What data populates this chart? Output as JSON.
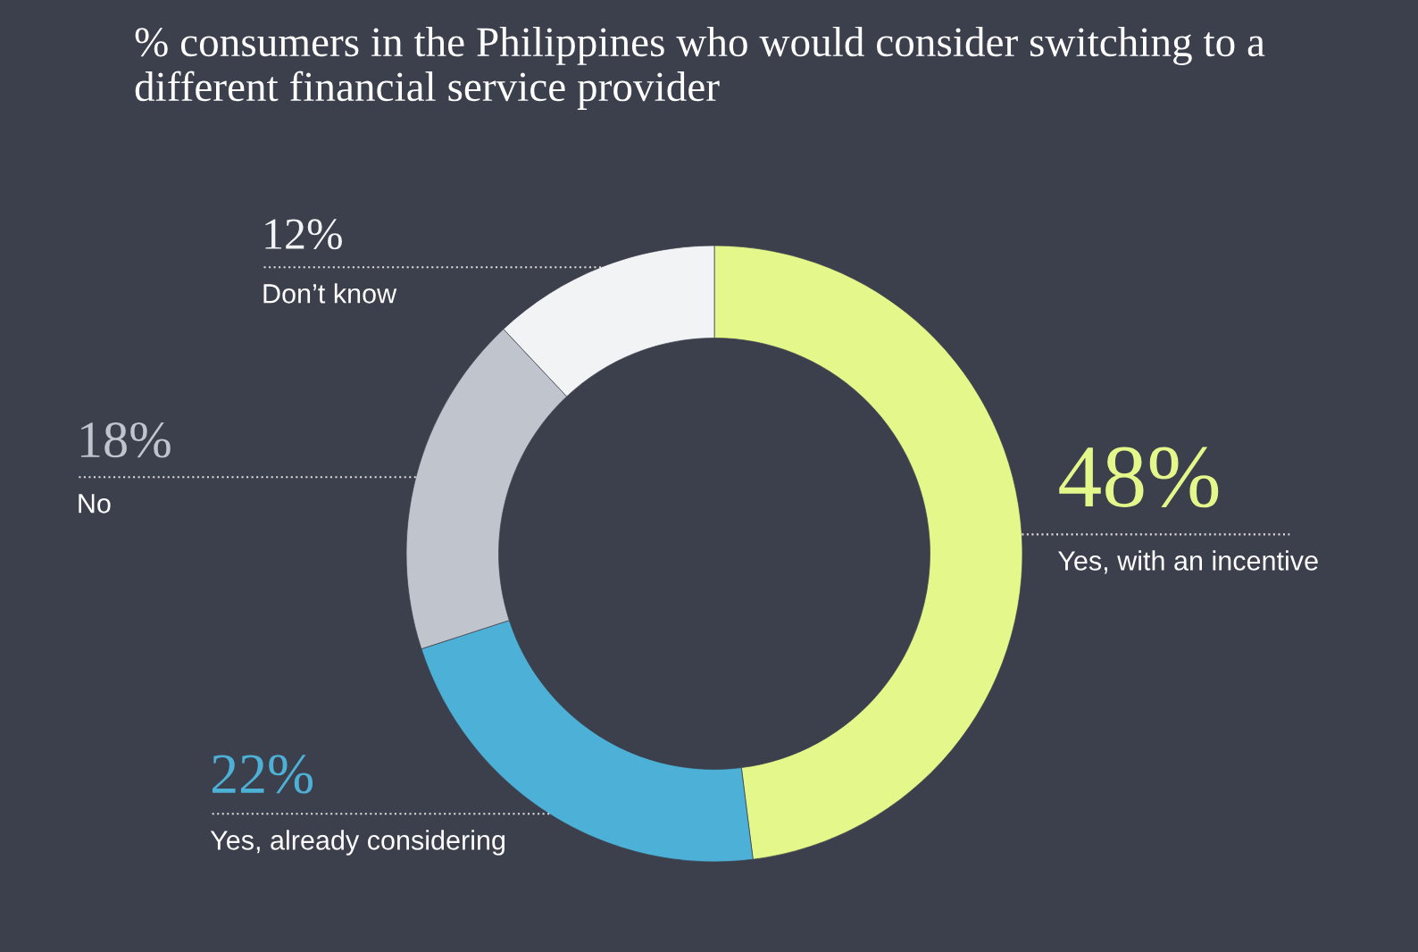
{
  "chart_data": {
    "type": "donut",
    "title": "% consumers in the Philippines who would consider switching to a different financial service provider",
    "categories": [
      "Yes, with an incentive",
      "Yes, already considering",
      "No",
      "Don’t know"
    ],
    "values": [
      48,
      22,
      18,
      12
    ],
    "value_labels": [
      "48%",
      "22%",
      "18%",
      "12%"
    ],
    "colors": [
      "#e4f78a",
      "#4db0d6",
      "#c0c4cc",
      "#f2f3f5"
    ],
    "legend": false
  }
}
